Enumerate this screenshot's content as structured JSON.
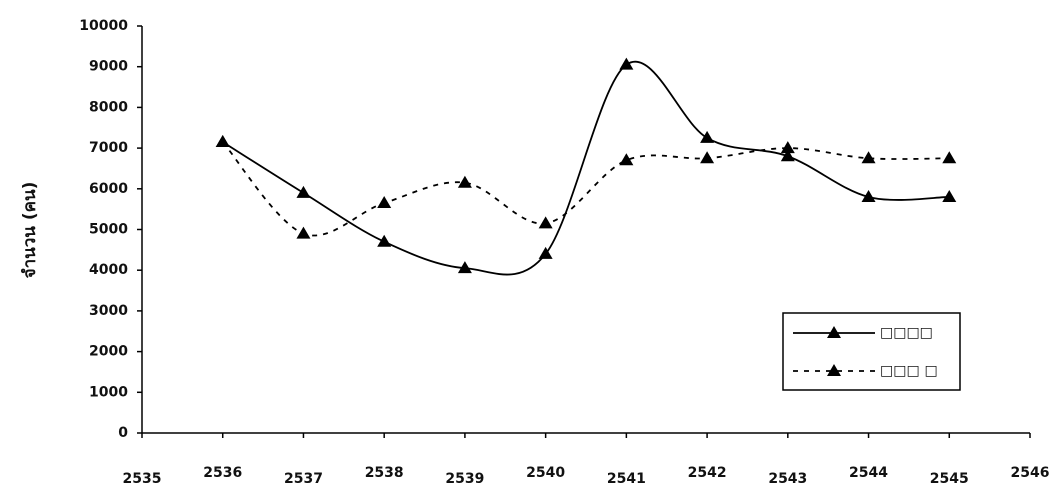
{
  "chart_data": {
    "type": "line",
    "y_label": "จำนวน (คน)",
    "x": [
      2536,
      2537,
      2538,
      2539,
      2540,
      2541,
      2542,
      2543,
      2544,
      2545
    ],
    "series": [
      {
        "name": "□□□□",
        "color": "#000000",
        "dash": "solid",
        "values": [
          7150,
          5900,
          4700,
          4050,
          4400,
          9050,
          7250,
          6800,
          5800,
          5800
        ]
      },
      {
        "name": "□□□ □",
        "color": "#000000",
        "dash": "dashed",
        "values": [
          7150,
          4900,
          5650,
          6150,
          5150,
          6700,
          6750,
          7000,
          6750,
          6750
        ]
      }
    ],
    "xlim": [
      2535,
      2546
    ],
    "xticks": [
      2535,
      2536,
      2537,
      2538,
      2539,
      2540,
      2541,
      2542,
      2543,
      2544,
      2545,
      2546
    ],
    "ylim": [
      0,
      10000
    ],
    "yticks": [
      0,
      1000,
      2000,
      3000,
      4000,
      5000,
      6000,
      7000,
      8000,
      9000,
      10000
    ],
    "smooth": true,
    "legend": "lower-right"
  }
}
